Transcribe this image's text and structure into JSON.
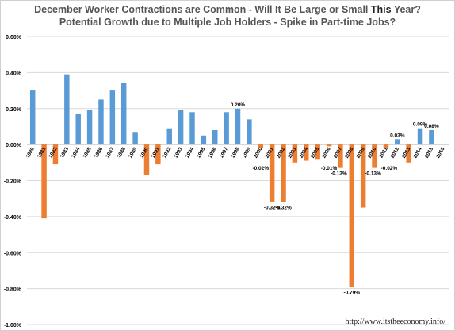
{
  "title": {
    "line1_a": "December Worker Contractions are Common - Will It Be Large or Small ",
    "line1_highlight": "This",
    "line1_b": " Year?",
    "line2": "Potential Growth due to Multiple Job Holders - Spike in Part-time Jobs?"
  },
  "source": "http://www.itstheeconomy.info/",
  "colors": {
    "positive": "#5b9bd5",
    "negative": "#ed7d31",
    "grid": "#d9d9d9",
    "axis_text": "#000000"
  },
  "chart_data": {
    "type": "bar",
    "title": "December Worker Contractions are Common - Will It Be Large or Small This Year?",
    "subtitle": "Potential Growth due to Multiple Job Holders - Spike in Part-time Jobs?",
    "xlabel": "",
    "ylabel": "",
    "ylim": [
      -1.0,
      0.6
    ],
    "yticks": [
      0.6,
      0.4,
      0.2,
      0.0,
      -0.2,
      -0.4,
      -0.6,
      -0.8,
      -1.0
    ],
    "ytick_labels": [
      "0.60%",
      "0.40%",
      "0.20%",
      "0.00%",
      "-0.20%",
      "-0.40%",
      "-0.60%",
      "-0.80%",
      "-1.00%"
    ],
    "grid": true,
    "legend": "none",
    "categories": [
      "1980",
      "1981",
      "1982",
      "1983",
      "1984",
      "1985",
      "1986",
      "1987",
      "1988",
      "1989",
      "1990",
      "1991",
      "1992",
      "1993",
      "1994",
      "1995",
      "1996",
      "1997",
      "1998",
      "1999",
      "2000",
      "2001",
      "2002",
      "2003",
      "2004",
      "2005",
      "2006",
      "2007",
      "2008",
      "2009",
      "2010",
      "2011",
      "2012",
      "2013",
      "2014",
      "2015",
      "2016"
    ],
    "values": [
      0.3,
      -0.41,
      -0.11,
      0.39,
      0.17,
      0.19,
      0.25,
      0.3,
      0.34,
      0.07,
      -0.17,
      -0.11,
      0.09,
      0.19,
      0.18,
      0.05,
      0.08,
      0.18,
      0.2,
      0.14,
      -0.02,
      -0.32,
      -0.32,
      -0.1,
      -0.09,
      -0.08,
      -0.01,
      -0.13,
      -0.79,
      -0.35,
      -0.13,
      -0.02,
      0.03,
      -0.1,
      0.09,
      0.08,
      null
    ],
    "data_labels": [
      {
        "category": "1998",
        "label": "0.20%"
      },
      {
        "category": "2000",
        "label": "-0.02%"
      },
      {
        "category": "2001",
        "label": "-0.32%"
      },
      {
        "category": "2002",
        "label": "-0.32%"
      },
      {
        "category": "2006",
        "label": "-0.01%"
      },
      {
        "category": "2007",
        "label": "-0.13%"
      },
      {
        "category": "2008",
        "label": "-0.79%"
      },
      {
        "category": "2010",
        "label": "-0.13%"
      },
      {
        "category": "2011",
        "label": "-0.02%"
      },
      {
        "category": "2012",
        "label": "0.03%"
      },
      {
        "category": "2014",
        "label": "0.09%"
      },
      {
        "category": "2015",
        "label": "0.08%"
      }
    ]
  }
}
